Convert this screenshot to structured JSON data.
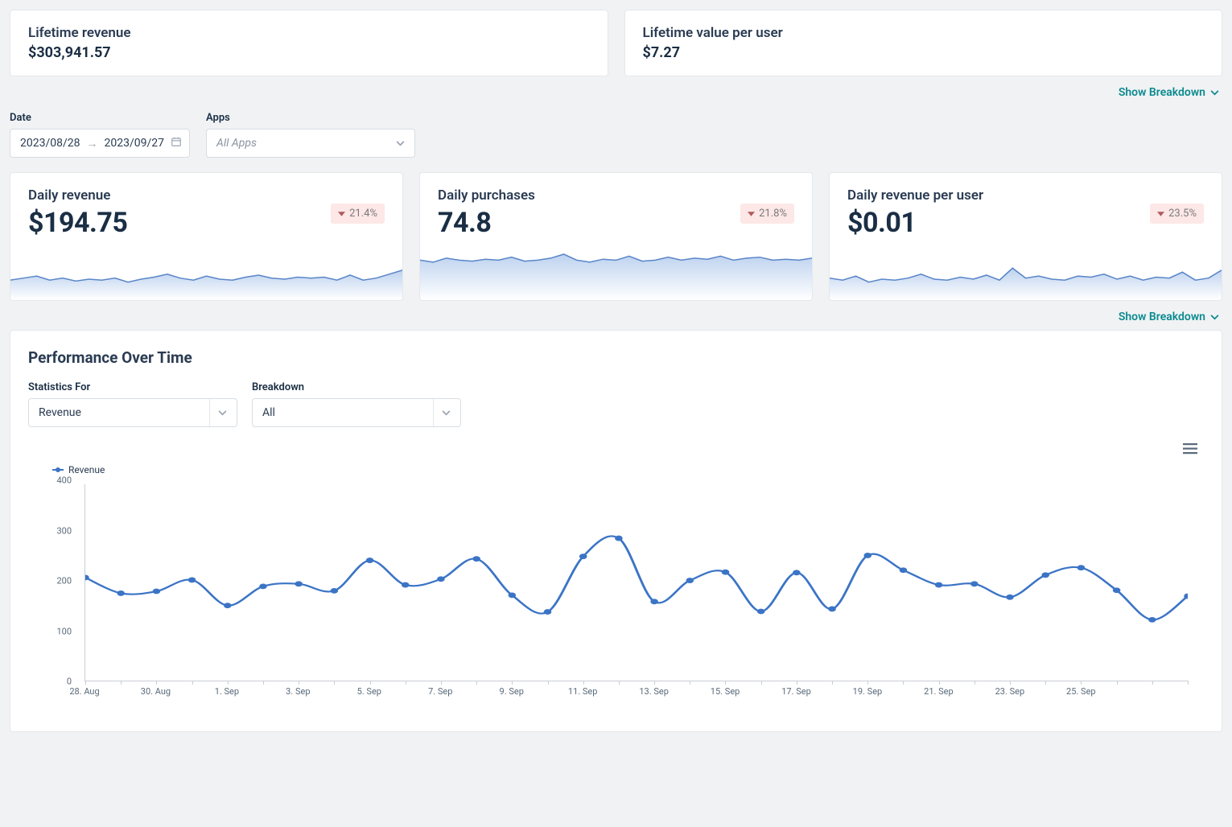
{
  "topCards": [
    {
      "title": "Lifetime revenue",
      "value": "$303,941.57"
    },
    {
      "title": "Lifetime value per user",
      "value": "$7.27"
    }
  ],
  "breakdownLabel": "Show Breakdown",
  "filters": {
    "dateLabel": "Date",
    "dateFrom": "2023/08/28",
    "dateTo": "2023/09/27",
    "appsLabel": "Apps",
    "appsValue": "All Apps"
  },
  "statCards": [
    {
      "title": "Daily revenue",
      "value": "$194.75",
      "delta": "21.4%",
      "spark": {
        "points": [
          20,
          22,
          24,
          20,
          22,
          19,
          21,
          20,
          22,
          18,
          21,
          23,
          26,
          22,
          20,
          24,
          21,
          20,
          23,
          25,
          22,
          21,
          23,
          22,
          23,
          20,
          25,
          20,
          22,
          26,
          30
        ],
        "max": 50,
        "strokeColor": "#5a86c9",
        "fillTop": "#bdd2ef",
        "fillBottom": "#ffffff"
      }
    },
    {
      "title": "Daily purchases",
      "value": "74.8",
      "delta": "21.8%",
      "spark": {
        "points": [
          40,
          38,
          42,
          40,
          39,
          41,
          40,
          43,
          39,
          40,
          42,
          46,
          40,
          38,
          41,
          40,
          44,
          39,
          40,
          43,
          40,
          42,
          41,
          44,
          40,
          42,
          43,
          40,
          41,
          40,
          42
        ],
        "max": 50,
        "strokeColor": "#5a86c9",
        "fillTop": "#bdd2ef",
        "fillBottom": "#ffffff"
      }
    },
    {
      "title": "Daily revenue per user",
      "value": "$0.01",
      "delta": "23.5%",
      "spark": {
        "points": [
          22,
          20,
          24,
          18,
          21,
          20,
          22,
          26,
          21,
          20,
          23,
          21,
          25,
          20,
          32,
          22,
          24,
          21,
          20,
          24,
          23,
          26,
          21,
          24,
          20,
          23,
          22,
          28,
          20,
          22,
          30
        ],
        "max": 50,
        "strokeColor": "#5a86c9",
        "fillTop": "#bdd2ef",
        "fillBottom": "#ffffff"
      }
    }
  ],
  "perf": {
    "title": "Performance Over Time",
    "statsForLabel": "Statistics For",
    "statsForValue": "Revenue",
    "breakdownLabel": "Breakdown",
    "breakdownValue": "All",
    "legend": "Revenue",
    "chart": {
      "ylim": [
        0,
        400
      ],
      "yticks": [
        0,
        100,
        200,
        300,
        400
      ],
      "lineColor": "#3b74c6",
      "xlabels": [
        "28. Aug",
        "30. Aug",
        "1. Sep",
        "3. Sep",
        "5. Sep",
        "7. Sep",
        "9. Sep",
        "11. Sep",
        "13. Sep",
        "15. Sep",
        "17. Sep",
        "19. Sep",
        "21. Sep",
        "23. Sep",
        "25. Sep"
      ],
      "values": [
        210,
        178,
        182,
        205,
        153,
        192,
        197,
        183,
        245,
        195,
        207,
        248,
        174,
        140,
        253,
        290,
        161,
        204,
        221,
        141,
        220,
        146,
        255,
        225,
        195,
        197,
        170,
        215,
        230,
        184,
        124,
        172
      ]
    }
  }
}
